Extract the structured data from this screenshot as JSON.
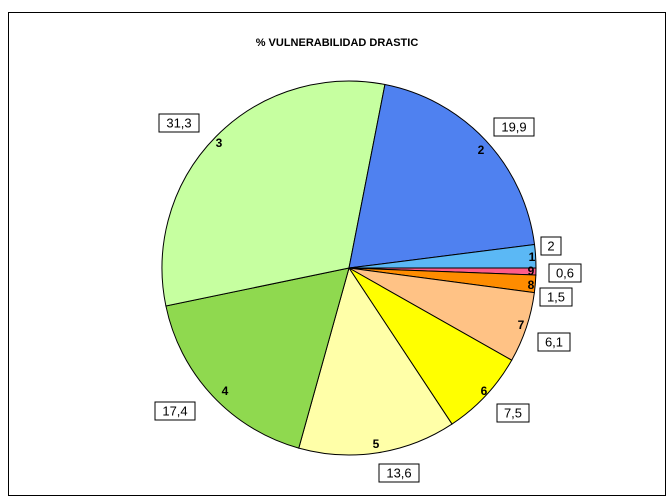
{
  "chart_data": {
    "type": "pie",
    "title": "% VULNERABILIDAD DRASTIC",
    "slices": [
      {
        "name": "1",
        "label": "2",
        "value": 2.0,
        "color": "#5BB8F5"
      },
      {
        "name": "2",
        "label": "19,9",
        "value": 19.9,
        "color": "#4F81F0"
      },
      {
        "name": "3",
        "label": "31,3",
        "value": 31.3,
        "color": "#C6FFA0"
      },
      {
        "name": "4",
        "label": "17,4",
        "value": 17.4,
        "color": "#8FD94F"
      },
      {
        "name": "5",
        "label": "13,6",
        "value": 13.6,
        "color": "#FFFFA8"
      },
      {
        "name": "6",
        "label": "7,5",
        "value": 7.5,
        "color": "#FFFF00"
      },
      {
        "name": "7",
        "label": "6,1",
        "value": 6.1,
        "color": "#FFC285"
      },
      {
        "name": "8",
        "label": "1,5",
        "value": 1.5,
        "color": "#FF8C00"
      },
      {
        "name": "9",
        "label": "0,6",
        "value": 0.6,
        "color": "#FF5C8A"
      }
    ]
  }
}
